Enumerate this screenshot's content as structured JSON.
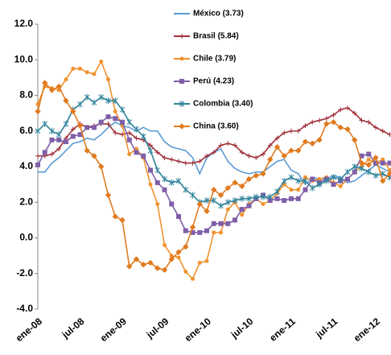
{
  "chart_data": {
    "type": "line",
    "categories": [
      "ene-08",
      null,
      null,
      null,
      null,
      null,
      "jul-08",
      null,
      null,
      null,
      null,
      null,
      "ene-09",
      null,
      null,
      null,
      null,
      null,
      "jul-09",
      null,
      null,
      null,
      null,
      null,
      "ene-10",
      null,
      null,
      null,
      null,
      null,
      "jul-10",
      null,
      null,
      null,
      null,
      null,
      "ene-11",
      null,
      null,
      null,
      null,
      null,
      "jul-11",
      null,
      null,
      null,
      null,
      null,
      "ene-12",
      null,
      null
    ],
    "ylim": [
      -4,
      12
    ],
    "yticks": [
      {
        "value": -4,
        "label": "-4.0"
      },
      {
        "value": -2,
        "label": "-2.0"
      },
      {
        "value": 0,
        "label": "0.0"
      },
      {
        "value": 2,
        "label": "2.0"
      },
      {
        "value": 4,
        "label": "4.0"
      },
      {
        "value": 6,
        "label": "6.0"
      },
      {
        "value": 8,
        "label": "8.0"
      },
      {
        "value": 10,
        "label": "10.0"
      },
      {
        "value": 12,
        "label": "12.0"
      }
    ],
    "grid": false,
    "series": [
      {
        "name": "México (3.73)",
        "color": "#5b9bd5",
        "marker": "none",
        "values": [
          3.7,
          3.7,
          4.2,
          4.5,
          4.9,
          5.3,
          5.4,
          5.6,
          5.5,
          5.8,
          6.2,
          6.5,
          6.3,
          6.2,
          6.0,
          6.2,
          6.0,
          6.0,
          5.4,
          5.1,
          5.0,
          4.9,
          4.5,
          3.6,
          4.5,
          4.8,
          5.0,
          4.3,
          3.9,
          3.7,
          3.6,
          3.7,
          3.7,
          4.0,
          4.3,
          4.4,
          3.8,
          3.6,
          3.0,
          3.4,
          3.3,
          3.3,
          3.5,
          3.4,
          3.1,
          3.2,
          3.5,
          3.8,
          4.1,
          3.9,
          3.7
        ]
      },
      {
        "name": "Brasil (5.84)",
        "color": "#a0303a",
        "marker": "plus",
        "values": [
          4.6,
          4.6,
          4.7,
          5.0,
          5.6,
          6.1,
          6.4,
          6.2,
          6.3,
          6.4,
          6.4,
          5.9,
          5.8,
          5.9,
          5.6,
          5.5,
          5.2,
          4.8,
          4.5,
          4.4,
          4.3,
          4.2,
          4.2,
          4.3,
          4.6,
          4.8,
          5.2,
          5.3,
          5.2,
          4.8,
          4.6,
          4.5,
          4.7,
          5.2,
          5.6,
          5.9,
          6.0,
          6.0,
          6.3,
          6.5,
          6.6,
          6.7,
          6.9,
          7.2,
          7.3,
          7.0,
          6.6,
          6.5,
          6.2,
          6.0,
          5.8
        ]
      },
      {
        "name": "Chile (3.79)",
        "color": "#f0922f",
        "marker": "circle",
        "values": [
          7.5,
          8.5,
          8.4,
          8.3,
          8.9,
          9.5,
          9.5,
          9.3,
          9.2,
          9.9,
          8.9,
          7.1,
          6.3,
          4.7,
          5.0,
          4.5,
          3.0,
          1.9,
          -0.4,
          -1.0,
          -1.1,
          -1.9,
          -2.3,
          -1.4,
          -1.3,
          0.3,
          0.3,
          1.6,
          2.0,
          1.3,
          1.9,
          2.2,
          1.9,
          2.1,
          2.5,
          3.0,
          2.7,
          2.7,
          3.4,
          3.2,
          3.3,
          3.4,
          3.1,
          2.9,
          3.3,
          3.7,
          4.0,
          4.4,
          4.2,
          4.4,
          3.8
        ]
      },
      {
        "name": "Perú (4.23)",
        "color": "#7f5fa8",
        "marker": "square",
        "values": [
          4.1,
          4.8,
          5.5,
          5.5,
          5.4,
          5.7,
          5.8,
          6.2,
          6.2,
          6.5,
          6.8,
          6.7,
          6.5,
          5.5,
          4.8,
          4.6,
          3.8,
          3.1,
          2.7,
          1.9,
          1.2,
          0.4,
          0.3,
          0.3,
          0.4,
          0.8,
          0.8,
          0.8,
          1.0,
          1.6,
          1.8,
          2.2,
          2.4,
          2.1,
          2.2,
          2.1,
          2.2,
          2.2,
          2.7,
          3.3,
          3.1,
          3.3,
          3.0,
          3.2,
          3.3,
          3.7,
          4.6,
          4.7,
          4.2,
          4.2,
          4.2
        ]
      },
      {
        "name": "Colombia (3.40)",
        "color": "#31849b",
        "marker": "star",
        "values": [
          6.0,
          6.4,
          6.0,
          5.8,
          6.4,
          7.2,
          7.5,
          7.9,
          7.6,
          7.9,
          7.7,
          7.7,
          7.2,
          6.5,
          6.1,
          5.7,
          4.9,
          3.8,
          3.3,
          3.1,
          3.2,
          2.7,
          2.4,
          2.0,
          2.1,
          2.1,
          1.8,
          2.0,
          2.1,
          2.2,
          2.2,
          2.3,
          2.3,
          2.3,
          2.6,
          3.2,
          3.4,
          3.2,
          3.2,
          2.8,
          3.0,
          3.2,
          3.4,
          3.3,
          3.7,
          4.0,
          3.9,
          3.7,
          3.5,
          3.6,
          3.4
        ]
      },
      {
        "name": "China (3.60)",
        "color": "#e07b20",
        "marker": "diamond",
        "values": [
          7.1,
          8.7,
          8.3,
          8.5,
          7.7,
          7.1,
          6.3,
          4.9,
          4.6,
          4.0,
          2.4,
          1.2,
          1.0,
          -1.6,
          -1.2,
          -1.5,
          -1.4,
          -1.7,
          -1.8,
          -1.2,
          -0.8,
          -0.5,
          0.6,
          1.9,
          1.5,
          2.7,
          2.4,
          2.8,
          3.1,
          2.9,
          3.3,
          3.5,
          3.6,
          4.4,
          5.1,
          4.6,
          4.9,
          4.9,
          5.4,
          5.3,
          5.5,
          6.4,
          6.5,
          6.2,
          6.1,
          5.5,
          4.2,
          4.1,
          4.5,
          3.2,
          3.6
        ]
      }
    ]
  }
}
